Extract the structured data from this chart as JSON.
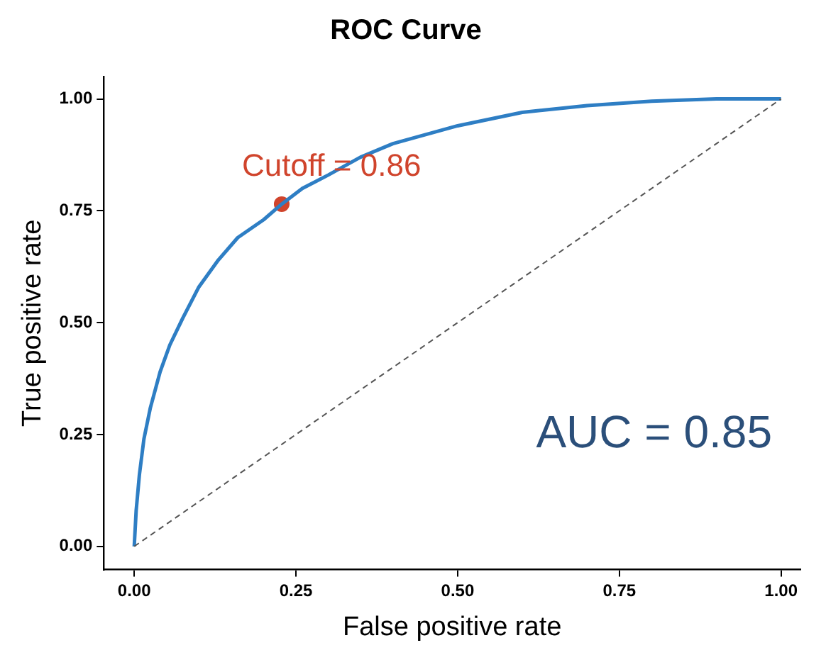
{
  "chart_data": {
    "type": "line",
    "title": "ROC Curve",
    "xlabel": "False positive rate",
    "ylabel": "True positive rate",
    "xlim": [
      -0.047,
      1.03
    ],
    "ylim": [
      -0.052,
      1.05
    ],
    "xticks": [
      {
        "value": 0,
        "label": "0.00"
      },
      {
        "value": 0.25,
        "label": "0.25"
      },
      {
        "value": 0.5,
        "label": "0.50"
      },
      {
        "value": 0.75,
        "label": "0.75"
      },
      {
        "value": 1,
        "label": "1.00"
      }
    ],
    "yticks": [
      {
        "value": 0,
        "label": "0.00"
      },
      {
        "value": 0.25,
        "label": "0.25"
      },
      {
        "value": 0.5,
        "label": "0.50"
      },
      {
        "value": 0.75,
        "label": "0.75"
      },
      {
        "value": 1,
        "label": "1.00"
      }
    ],
    "grid": false,
    "legend": false,
    "marker": "none",
    "series": [
      {
        "color": "#555555",
        "line_style": "dashed",
        "x": [
          0,
          1
        ],
        "values": [
          0,
          1
        ]
      },
      {
        "color": "#2e7ec4",
        "line_style": "solid",
        "x": [
          0,
          0.003,
          0.008,
          0.015,
          0.025,
          0.04,
          0.055,
          0.075,
          0.1,
          0.13,
          0.16,
          0.2,
          0.228,
          0.26,
          0.3,
          0.35,
          0.4,
          0.5,
          0.6,
          0.7,
          0.8,
          0.9,
          1
        ],
        "values": [
          0,
          0.08,
          0.16,
          0.24,
          0.31,
          0.39,
          0.45,
          0.51,
          0.58,
          0.64,
          0.69,
          0.73,
          0.765,
          0.8,
          0.83,
          0.87,
          0.9,
          0.94,
          0.97,
          0.985,
          0.995,
          1,
          1
        ]
      },
      {
        "type": "scatter",
        "color": "#d0442c",
        "marker": "circle",
        "x": [
          0.228
        ],
        "values": [
          0.765
        ]
      }
    ],
    "annotations": [
      {
        "text": "Cutoff = 0.86",
        "x": 0.228,
        "y": 0.765
      },
      "AUC = 0.85"
    ]
  }
}
